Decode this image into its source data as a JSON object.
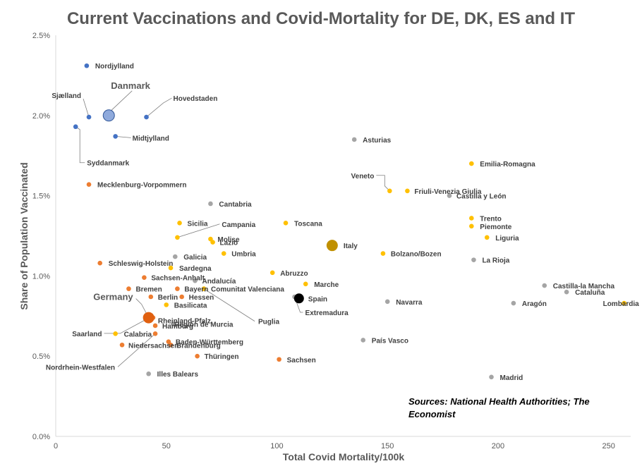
{
  "chart_data": {
    "type": "scatter",
    "title": "Current Vaccinations and Covid-Mortality for DE, DK, ES and IT",
    "xlabel": "Total Covid Mortality/100k",
    "ylabel": "Share of Population Vaccinated",
    "xlim": [
      0,
      260
    ],
    "ylim": [
      0,
      0.025
    ],
    "xticks": [
      0,
      50,
      100,
      150,
      200,
      250
    ],
    "yticks": [
      0,
      0.005,
      0.01,
      0.015,
      0.02,
      0.025
    ],
    "xtick_labels": [
      "0",
      "50",
      "100",
      "150",
      "200",
      "250"
    ],
    "ytick_labels": [
      "0.0%",
      "0.5%",
      "1.0%",
      "1.5%",
      "2.0%",
      "2.5%"
    ],
    "grid": false,
    "legend": "none",
    "source_note": "Sources: National Health Authorities; The Economist",
    "colors": {
      "denmark": "#4472c4",
      "germany": "#ed7d31",
      "spain": "#a5a5a5",
      "italy": "#ffc000",
      "denmark_total": "#8faadc",
      "germany_total": "#e06010",
      "spain_total": "#000000",
      "italy_total": "#c09000"
    },
    "points": [
      {
        "name": "Nordjylland",
        "x": 14,
        "y": 0.0231,
        "group": "denmark"
      },
      {
        "name": "Hovedstaden",
        "x": 41,
        "y": 0.0199,
        "group": "denmark"
      },
      {
        "name": "Sjælland",
        "x": 15,
        "y": 0.0199,
        "group": "denmark"
      },
      {
        "name": "Midtjylland",
        "x": 27,
        "y": 0.0187,
        "group": "denmark"
      },
      {
        "name": "Syddanmark",
        "x": 9,
        "y": 0.0193,
        "group": "denmark"
      },
      {
        "name": "Danmark",
        "x": 24,
        "y": 0.02,
        "group": "denmark",
        "total": true
      },
      {
        "name": "Mecklenburg-Vorpommern",
        "x": 15,
        "y": 0.0157,
        "group": "germany"
      },
      {
        "name": "Schleswig-Holstein",
        "x": 20,
        "y": 0.0108,
        "group": "germany"
      },
      {
        "name": "Sachsen-Anhalt",
        "x": 40,
        "y": 0.0099,
        "group": "germany"
      },
      {
        "name": "Bremen",
        "x": 33,
        "y": 0.0092,
        "group": "germany"
      },
      {
        "name": "Berlin",
        "x": 43,
        "y": 0.0087,
        "group": "germany"
      },
      {
        "name": "Bayern",
        "x": 55,
        "y": 0.0092,
        "group": "germany"
      },
      {
        "name": "Hessen",
        "x": 57,
        "y": 0.0087,
        "group": "germany"
      },
      {
        "name": "Rheinland-Pfalz",
        "x": 44,
        "y": 0.0074,
        "group": "germany"
      },
      {
        "name": "Hamburg",
        "x": 45,
        "y": 0.0069,
        "group": "germany"
      },
      {
        "name": "Saarland",
        "x": 41,
        "y": 0.0073,
        "group": "germany"
      },
      {
        "name": "Niedersachsen",
        "x": 30,
        "y": 0.0057,
        "group": "germany"
      },
      {
        "name": "Baden-Württemberg",
        "x": 51,
        "y": 0.0059,
        "group": "germany"
      },
      {
        "name": "Brandenburg",
        "x": 52,
        "y": 0.0057,
        "group": "germany"
      },
      {
        "name": "Nordrhein-Westfalen",
        "x": 45,
        "y": 0.0064,
        "group": "germany"
      },
      {
        "name": "Thüringen",
        "x": 64,
        "y": 0.005,
        "group": "germany"
      },
      {
        "name": "Sachsen",
        "x": 101,
        "y": 0.0048,
        "group": "germany"
      },
      {
        "name": "Germany",
        "x": 42,
        "y": 0.0074,
        "group": "germany",
        "total": true
      },
      {
        "name": "Asturias",
        "x": 135,
        "y": 0.0185,
        "group": "spain"
      },
      {
        "name": "Castilla y León",
        "x": 178,
        "y": 0.015,
        "group": "spain"
      },
      {
        "name": "Cantabria",
        "x": 70,
        "y": 0.0145,
        "group": "spain"
      },
      {
        "name": "Galicia",
        "x": 54,
        "y": 0.0112,
        "group": "spain"
      },
      {
        "name": "La Rioja",
        "x": 189,
        "y": 0.011,
        "group": "spain"
      },
      {
        "name": "Andalucía",
        "x": 63,
        "y": 0.0097,
        "group": "spain"
      },
      {
        "name": "Comunitat Valenciana",
        "x": 67,
        "y": 0.0092,
        "group": "spain"
      },
      {
        "name": "Castilla-la Mancha",
        "x": 221,
        "y": 0.0094,
        "group": "spain"
      },
      {
        "name": "Cataluña",
        "x": 231,
        "y": 0.009,
        "group": "spain"
      },
      {
        "name": "Navarra",
        "x": 150,
        "y": 0.0084,
        "group": "spain"
      },
      {
        "name": "Aragón",
        "x": 207,
        "y": 0.0083,
        "group": "spain"
      },
      {
        "name": "Extremadura",
        "x": 108,
        "y": 0.0087,
        "group": "spain"
      },
      {
        "name": "Región de Murcia",
        "x": 53,
        "y": 0.007,
        "group": "spain"
      },
      {
        "name": "País Vasco",
        "x": 139,
        "y": 0.006,
        "group": "spain"
      },
      {
        "name": "Illes Balears",
        "x": 42,
        "y": 0.0039,
        "group": "spain"
      },
      {
        "name": "Madrid",
        "x": 197,
        "y": 0.0037,
        "group": "spain"
      },
      {
        "name": "Spain",
        "x": 110,
        "y": 0.0086,
        "group": "spain",
        "total": true
      },
      {
        "name": "Emilia-Romagna",
        "x": 188,
        "y": 0.017,
        "group": "italy"
      },
      {
        "name": "Veneto",
        "x": 151,
        "y": 0.0153,
        "group": "italy"
      },
      {
        "name": "Friuli-Venezia Giulia",
        "x": 159,
        "y": 0.0153,
        "group": "italy"
      },
      {
        "name": "Trento",
        "x": 188,
        "y": 0.0136,
        "group": "italy"
      },
      {
        "name": "Piemonte",
        "x": 188,
        "y": 0.0131,
        "group": "italy"
      },
      {
        "name": "Liguria",
        "x": 195,
        "y": 0.0124,
        "group": "italy"
      },
      {
        "name": "Toscana",
        "x": 104,
        "y": 0.0133,
        "group": "italy"
      },
      {
        "name": "Sicilia",
        "x": 56,
        "y": 0.0133,
        "group": "italy"
      },
      {
        "name": "Campania",
        "x": 55,
        "y": 0.0124,
        "group": "italy"
      },
      {
        "name": "Molise",
        "x": 70,
        "y": 0.0123,
        "group": "italy"
      },
      {
        "name": "Lazio",
        "x": 71,
        "y": 0.0121,
        "group": "italy"
      },
      {
        "name": "Umbria",
        "x": 76,
        "y": 0.0114,
        "group": "italy"
      },
      {
        "name": "Bolzano/Bozen",
        "x": 148,
        "y": 0.0114,
        "group": "italy"
      },
      {
        "name": "Sardegna",
        "x": 52,
        "y": 0.0105,
        "group": "italy"
      },
      {
        "name": "Abruzzo",
        "x": 98,
        "y": 0.0102,
        "group": "italy"
      },
      {
        "name": "Marche",
        "x": 113,
        "y": 0.0095,
        "group": "italy"
      },
      {
        "name": "Basilicata",
        "x": 50,
        "y": 0.0082,
        "group": "italy"
      },
      {
        "name": "Puglia",
        "x": 67,
        "y": 0.0092,
        "group": "italy"
      },
      {
        "name": "Calabria",
        "x": 27,
        "y": 0.0064,
        "group": "italy"
      },
      {
        "name": "Lombardia",
        "x": 257,
        "y": 0.0083,
        "group": "italy"
      },
      {
        "name": "Italy",
        "x": 125,
        "y": 0.0119,
        "group": "italy",
        "total": true
      }
    ]
  }
}
